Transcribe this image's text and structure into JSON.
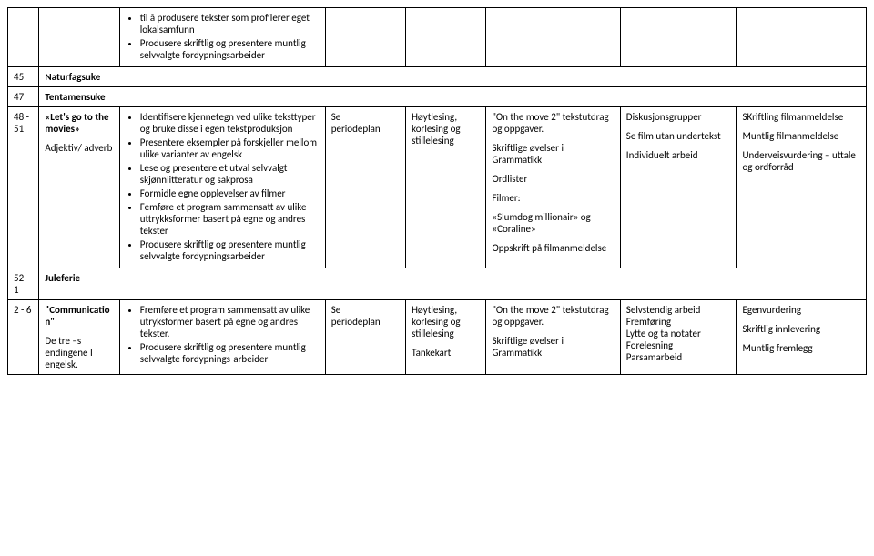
{
  "top": {
    "bullets": [
      "til å produsere tekster som profilerer eget lokalsamfunn",
      "Produsere skriftlig og presentere muntlig selvvalgte fordypningsarbeider"
    ]
  },
  "r45": {
    "wk": "45",
    "label": "Naturfagsuke"
  },
  "r47": {
    "wk": "47",
    "label": "Tentamensuke"
  },
  "r48": {
    "wk": "48 - 51",
    "topic_title": "«Let's go to the movies»",
    "topic_sub": "Adjektiv/ adverb",
    "bullets": [
      "Identifisere kjennetegn ved ulike teksttyper og bruke disse i egen tekstproduksjon",
      "Presentere eksempler på forskjeller mellom ulike varianter av engelsk",
      "Lese og presentere et utval selvvalgt skjønnlitteratur og sakprosa",
      "Formidle egne opplevelser av filmer",
      "Femføre et program sammensatt av ulike uttrykksformer basert på egne og andres tekster",
      "Produsere skriftlig og presentere muntlig selvvalgte fordypningsarbeider"
    ],
    "col4_l1": "Se",
    "col4_l2": "periodeplan",
    "col5": "Høytlesing, korlesing og stillelesing",
    "col6_p1": "\"On the move 2\" tekstutdrag og oppgaver.",
    "col6_p2": "Skriftlige øvelser i Grammatikk",
    "col6_p3": "Ordlister",
    "col6_p4": "Filmer:",
    "col6_p5": "«Slumdog millionair» og «Coraline»",
    "col6_p6": "Oppskrift på filmanmeldelse",
    "col7_p1": "Diskusjonsgrupper",
    "col7_p2": "Se film utan undertekst",
    "col7_p3": "Individuelt arbeid",
    "col8_p1": "SKriftling filmanmeldelse",
    "col8_p2": "Muntlig filmanmeldelse",
    "col8_p3": "Underveisvurdering – uttale og ordforråd"
  },
  "r52": {
    "wk": "52 - 1",
    "label": "Juleferie"
  },
  "r2": {
    "wk": "2 - 6",
    "topic_title": "\"Communication\"",
    "topic_sub": "De tre –s endingene I engelsk.",
    "bullets": [
      "Fremføre et program sammensatt av ulike utryksformer basert på egne og andres tekster.",
      "Produsere skriftlig og presentere muntlig selvvalgte fordypnings-arbeider"
    ],
    "col4_l1": "Se",
    "col4_l2": "periodeplan",
    "col5_p1": "Høytlesing, korlesing og stillelesing",
    "col5_p2": "Tankekart",
    "col6_p1": "\"On the move 2\" tekstutdrag og oppgaver.",
    "col6_p2": "Skriftlige øvelser i Grammatikk",
    "col7_l1": "Selvstendig arbeid",
    "col7_l2": "Fremføring",
    "col7_l3": "Lytte og ta notater",
    "col7_l4": "Forelesning",
    "col7_l5": "Parsamarbeid",
    "col8_p1": "Egenvurdering",
    "col8_p2": "Skriftlig innlevering",
    "col8_p3": "Muntlig fremlegg"
  }
}
